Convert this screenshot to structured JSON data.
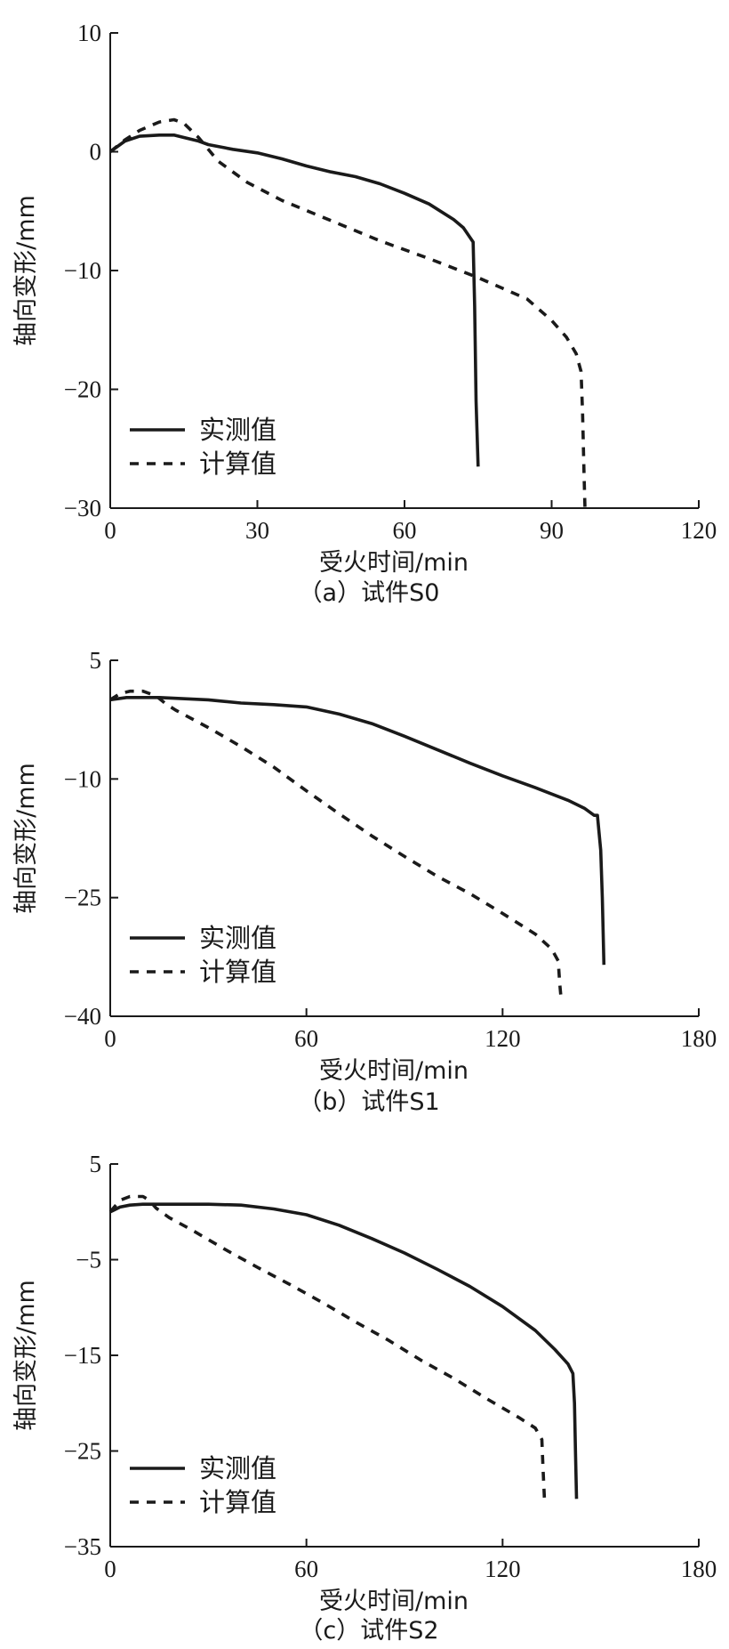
{
  "chart_data": [
    {
      "type": "line",
      "caption": "（a）试件S0",
      "xlabel": "受火时间/min",
      "ylabel": "轴向变形/mm",
      "xlim": [
        0,
        120
      ],
      "ylim": [
        -30,
        10
      ],
      "xticks": [
        0,
        30,
        60,
        90,
        120
      ],
      "yticks": [
        10,
        0,
        -10,
        -20,
        -30
      ],
      "legend_position": "bottom-left",
      "series": [
        {
          "name": "实测值",
          "style": "solid",
          "x": [
            0,
            1,
            3,
            6,
            10,
            13,
            15,
            18,
            20,
            25,
            30,
            35,
            40,
            45,
            50,
            55,
            60,
            65,
            70,
            72,
            74,
            74.3,
            74.6,
            75
          ],
          "y": [
            0,
            0.3,
            0.9,
            1.3,
            1.4,
            1.4,
            1.2,
            0.9,
            0.6,
            0.2,
            -0.1,
            -0.6,
            -1.2,
            -1.7,
            -2.1,
            -2.7,
            -3.5,
            -4.4,
            -5.7,
            -6.4,
            -7.6,
            -13,
            -21,
            -26.5
          ]
        },
        {
          "name": "计算值",
          "style": "dashed",
          "x": [
            0,
            3,
            6,
            10,
            13,
            15,
            18,
            22,
            28,
            35,
            45,
            55,
            65,
            75,
            85,
            90,
            93,
            95,
            96,
            96.3,
            96.6,
            96.8
          ],
          "y": [
            0,
            1.0,
            1.8,
            2.5,
            2.7,
            2.4,
            1.2,
            -0.8,
            -2.6,
            -4.1,
            -5.8,
            -7.5,
            -9.0,
            -10.6,
            -12.4,
            -14.2,
            -15.6,
            -17.0,
            -18.5,
            -22,
            -27,
            -30
          ]
        }
      ]
    },
    {
      "type": "line",
      "caption": "（b）试件S1",
      "xlabel": "受火时间/min",
      "ylabel": "轴向变形/mm",
      "xlim": [
        0,
        180
      ],
      "ylim": [
        -40,
        5
      ],
      "xticks": [
        0,
        60,
        120,
        180
      ],
      "yticks": [
        5,
        -10,
        -25,
        -40
      ],
      "legend_position": "bottom-left",
      "series": [
        {
          "name": "实测值",
          "style": "solid",
          "x": [
            0,
            5,
            10,
            15,
            20,
            30,
            40,
            50,
            60,
            70,
            80,
            90,
            100,
            110,
            120,
            130,
            140,
            145,
            148,
            149,
            150,
            150.5,
            151
          ],
          "y": [
            0,
            0.3,
            0.3,
            0.3,
            0.2,
            0,
            -0.4,
            -0.6,
            -0.9,
            -1.8,
            -3.0,
            -4.6,
            -6.3,
            -8.0,
            -9.6,
            -11.1,
            -12.7,
            -13.7,
            -14.6,
            -14.6,
            -19,
            -25,
            -33.5
          ]
        },
        {
          "name": "计算值",
          "style": "dashed",
          "x": [
            0,
            3,
            6,
            10,
            14,
            17,
            20,
            30,
            40,
            50,
            60,
            70,
            80,
            90,
            100,
            110,
            120,
            130,
            135,
            137,
            137.5,
            138
          ],
          "y": [
            0,
            0.8,
            1.1,
            1.1,
            0.5,
            -0.5,
            -1.3,
            -3.5,
            -5.9,
            -8.5,
            -11.5,
            -14.4,
            -17.2,
            -19.8,
            -22.3,
            -24.5,
            -27.0,
            -29.6,
            -31.5,
            -33,
            -36,
            -38.2
          ]
        }
      ]
    },
    {
      "type": "line",
      "caption": "（c）试件S2",
      "xlabel": "受火时间/min",
      "ylabel": "轴向变形/mm",
      "xlim": [
        0,
        180
      ],
      "ylim": [
        -35,
        5
      ],
      "xticks": [
        0,
        60,
        120,
        180
      ],
      "yticks": [
        5,
        -5,
        -15,
        -25,
        -35
      ],
      "legend_position": "bottom-left",
      "series": [
        {
          "name": "实测值",
          "style": "solid",
          "x": [
            0,
            3,
            6,
            10,
            15,
            20,
            30,
            40,
            50,
            60,
            70,
            80,
            90,
            100,
            110,
            120,
            130,
            136,
            140,
            141.5,
            142,
            142.3,
            142.6
          ],
          "y": [
            0,
            0.5,
            0.7,
            0.8,
            0.8,
            0.8,
            0.8,
            0.7,
            0.3,
            -0.3,
            -1.4,
            -2.8,
            -4.3,
            -6.0,
            -7.8,
            -9.9,
            -12.4,
            -14.4,
            -15.9,
            -16.9,
            -20,
            -25,
            -30
          ]
        },
        {
          "name": "计算值",
          "style": "dashed",
          "x": [
            0,
            3,
            6,
            10,
            12,
            14,
            18,
            25,
            35,
            45,
            55,
            65,
            75,
            85,
            95,
            105,
            115,
            125,
            130,
            132,
            132.4,
            132.8
          ],
          "y": [
            0,
            1.2,
            1.6,
            1.6,
            1.2,
            0.4,
            -0.6,
            -1.9,
            -3.9,
            -5.8,
            -7.6,
            -9.5,
            -11.5,
            -13.4,
            -15.5,
            -17.4,
            -19.5,
            -21.5,
            -22.6,
            -23.8,
            -27,
            -30
          ]
        }
      ]
    }
  ]
}
